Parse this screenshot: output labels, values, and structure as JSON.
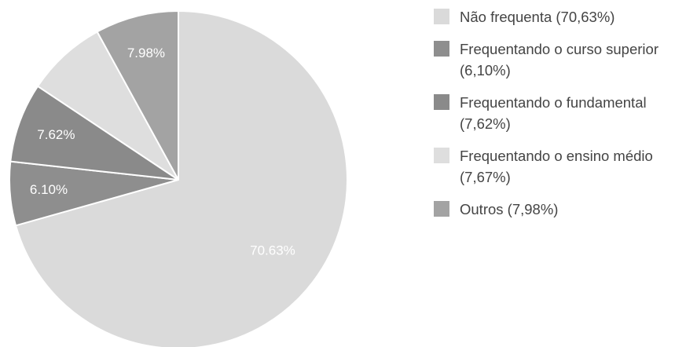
{
  "chart_data": {
    "type": "pie",
    "categories": [
      "Não frequenta (70,63%)",
      "Frequentando o curso superior (6,10%)",
      "Frequentando o fundamental (7,62%)",
      "Frequentando o ensino médio (7,67%)",
      "Outros (7,98%)"
    ],
    "values": [
      70.63,
      6.1,
      7.62,
      7.67,
      7.98
    ],
    "value_labels": [
      "70.63%",
      "6.10%",
      "7.62%",
      null,
      "7.98%"
    ],
    "colors": [
      "#dadada",
      "#8e8e8e",
      "#8a8a8a",
      "#dedede",
      "#a3a3a3"
    ],
    "legend": "right"
  }
}
